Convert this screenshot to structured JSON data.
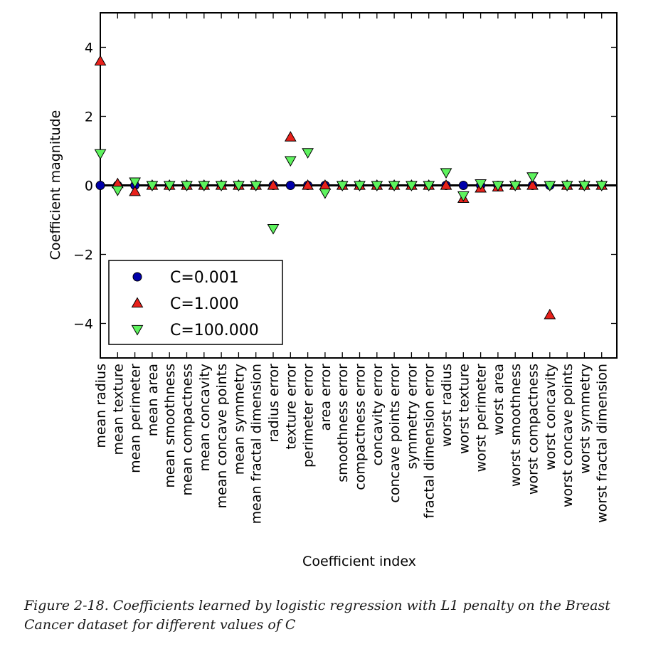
{
  "chart_data": {
    "type": "scatter",
    "xlabel": "Coefficient index",
    "ylabel": "Coefficient magnitude",
    "ylim": [
      -5,
      5
    ],
    "yticks": [
      4,
      2,
      0,
      -2,
      -4
    ],
    "ytick_labels": [
      "4",
      "2",
      "0",
      "−2",
      "−4"
    ],
    "hline": 0,
    "grid": false,
    "legend_position": "lower-left",
    "categories": [
      "mean radius",
      "mean texture",
      "mean perimeter",
      "mean area",
      "mean smoothness",
      "mean compactness",
      "mean concavity",
      "mean concave points",
      "mean symmetry",
      "mean fractal dimension",
      "radius error",
      "texture error",
      "perimeter error",
      "area error",
      "smoothness error",
      "compactness error",
      "concavity error",
      "concave points error",
      "symmetry error",
      "fractal dimension error",
      "worst radius",
      "worst texture",
      "worst perimeter",
      "worst area",
      "worst smoothness",
      "worst compactness",
      "worst concavity",
      "worst concave points",
      "worst symmetry",
      "worst fractal dimension"
    ],
    "series": [
      {
        "name": "C=0.001",
        "marker": "circle",
        "color": "#0000aa",
        "values": [
          0,
          0,
          0,
          0,
          0,
          0,
          0,
          0,
          0,
          0,
          0,
          0,
          0,
          0,
          0,
          0,
          0,
          0,
          0,
          0,
          0,
          0,
          0,
          0,
          0,
          0,
          0,
          0,
          0,
          0
        ]
      },
      {
        "name": "C=1.000",
        "marker": "triangle-up",
        "color": "#e8211b",
        "values": [
          3.6,
          0.05,
          -0.18,
          0,
          0,
          0,
          0,
          0,
          0,
          0,
          0,
          1.4,
          0,
          0,
          0,
          0,
          0,
          0,
          0,
          0,
          0,
          -0.38,
          -0.08,
          -0.05,
          0,
          0,
          -3.75,
          0,
          0,
          0
        ]
      },
      {
        "name": "C=100.000",
        "marker": "triangle-down",
        "color": "#5ef35e",
        "values": [
          0.92,
          -0.14,
          0.1,
          0,
          0,
          0,
          0,
          0,
          0,
          0,
          -1.25,
          0.72,
          0.95,
          -0.22,
          0,
          0,
          0,
          0,
          0,
          0,
          0.37,
          -0.3,
          0.05,
          0,
          0,
          0.25,
          0,
          0,
          0,
          0
        ]
      }
    ]
  },
  "caption": "Figure 2-18. Coefficients learned by logistic regression with L1 penalty on the Breast Cancer dataset for different values of C"
}
